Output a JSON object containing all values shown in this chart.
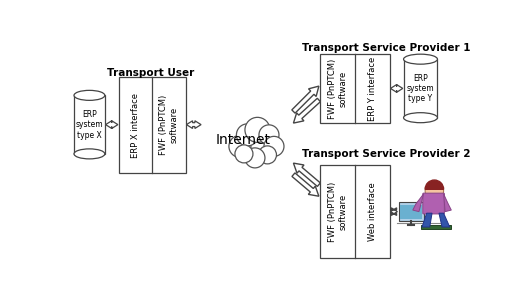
{
  "background_color": "#ffffff",
  "internet_label": "Internet",
  "transport_user_label": "Transport User",
  "tsp1_label": "Transport Service Provider 1",
  "tsp2_label": "Transport Service Provider 2",
  "tu_col1_label": "ERP X interface",
  "tu_col2_label": "FWF (PnPTCM)\nsoftware",
  "tsp1_col1_label": "FWF (PnPTCM)\nsoftware",
  "tsp1_col2_label": "ERP Y interface",
  "tsp2_col1_label": "FWF (PnPTCM)\nsoftware",
  "tsp2_col2_label": "Web interface",
  "erp_x_label": "ERP\nsystem\ntype X",
  "erp_y_label": "ERP\nsystem\ntype Y",
  "box_fill": "#ffffff",
  "box_edge": "#444444",
  "font_size_box_text": 6,
  "font_size_header": 7.5,
  "font_size_internet": 10,
  "font_size_erp": 5.5
}
